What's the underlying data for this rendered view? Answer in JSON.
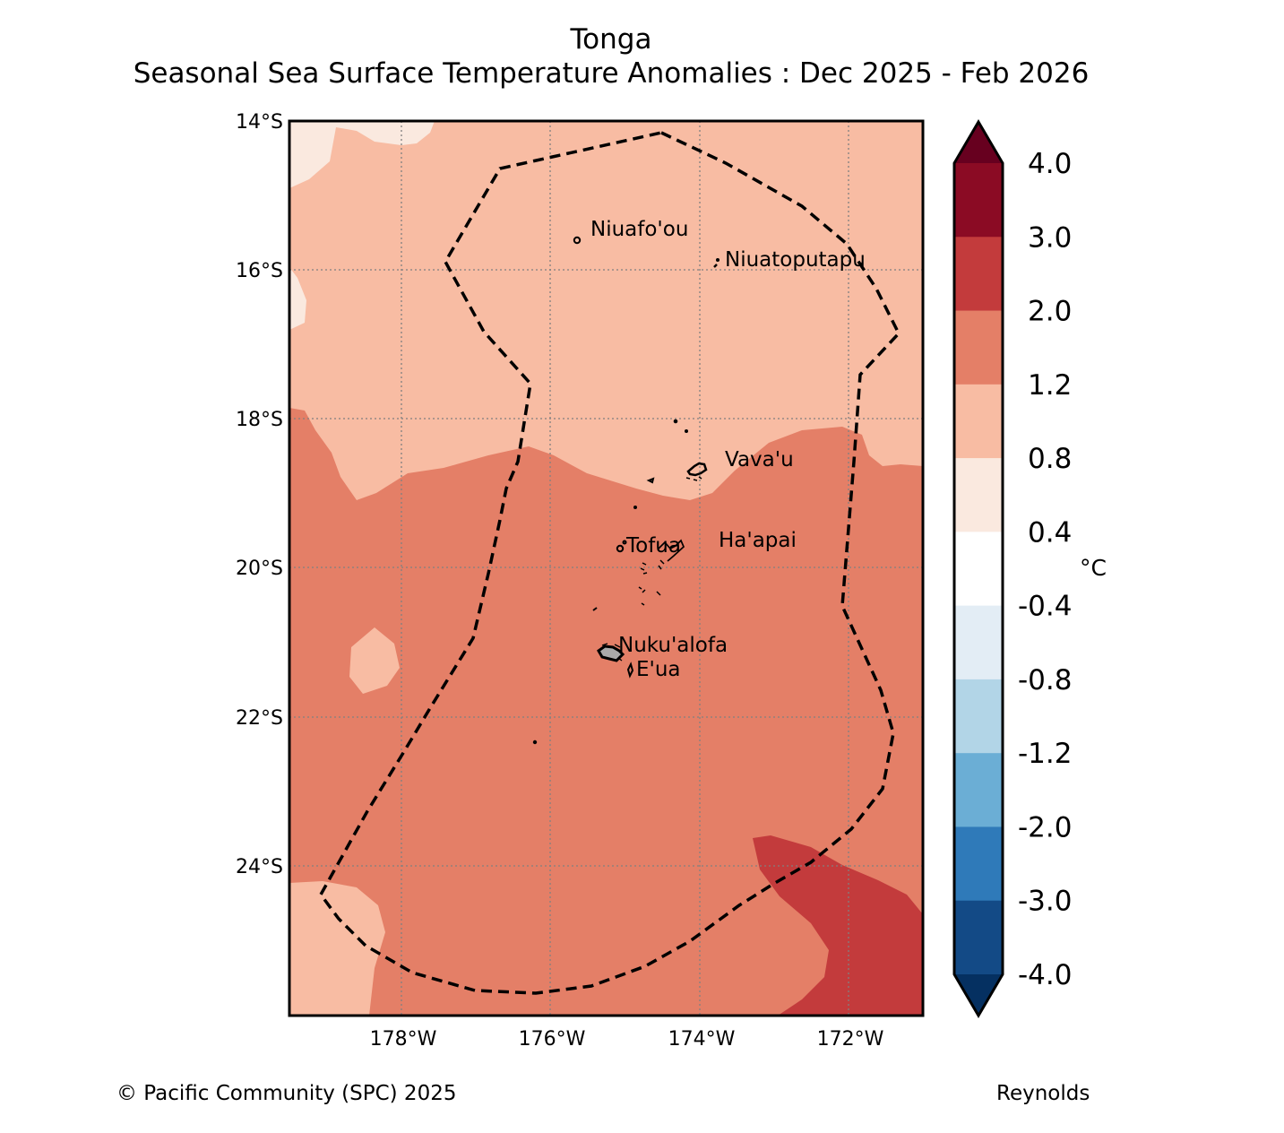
{
  "title": "Tonga",
  "subtitle": "Seasonal Sea Surface Temperature Anomalies : Dec 2025 - Feb 2026",
  "footer": {
    "copyright": "© Pacific Community (SPC) 2025",
    "source": "Reynolds"
  },
  "map": {
    "lon_range": [
      -179.5,
      -171.0
    ],
    "lat_range": [
      -26.0,
      -14.0
    ],
    "lat_ticks": [
      "14°S",
      "16°S",
      "18°S",
      "20°S",
      "22°S",
      "24°S"
    ],
    "lon_ticks": [
      "178°W",
      "176°W",
      "174°W",
      "172°W"
    ],
    "places": [
      {
        "name": "Niuafo'ou",
        "lon": -175.6,
        "lat": -15.6
      },
      {
        "name": "Niuatoputapu",
        "lon": -173.8,
        "lat": -15.95
      },
      {
        "name": "Vava'u",
        "lon": -174.0,
        "lat": -18.65
      },
      {
        "name": "Ha'apai",
        "lon": -174.3,
        "lat": -19.8
      },
      {
        "name": "Tofua",
        "lon": -175.07,
        "lat": -19.75
      },
      {
        "name": "Nuku'alofa",
        "lon": -175.2,
        "lat": -21.13
      },
      {
        "name": "E'ua",
        "lon": -174.95,
        "lat": -21.37
      }
    ]
  },
  "colorbar": {
    "unit": "°C",
    "labels": [
      "4.0",
      "3.0",
      "2.0",
      "1.2",
      "0.8",
      "0.4",
      "-0.4",
      "-0.8",
      "-1.2",
      "-2.0",
      "-3.0",
      "-4.0"
    ],
    "colors": {
      "above_max": "#67001f",
      "bins": [
        "#8b0b24",
        "#c33b3c",
        "#e47f67",
        "#f8bca3",
        "#fae9df",
        "#ffffff",
        "#e3edf5",
        "#b2d5e7",
        "#6baed5",
        "#2f7ab9",
        "#134a86"
      ],
      "below_min": "#053061"
    }
  },
  "legend_fill": {
    "band_1": "#fae9df",
    "band_2": "#f8bca3",
    "band_3": "#e47f67",
    "band_4": "#c33b3c"
  }
}
